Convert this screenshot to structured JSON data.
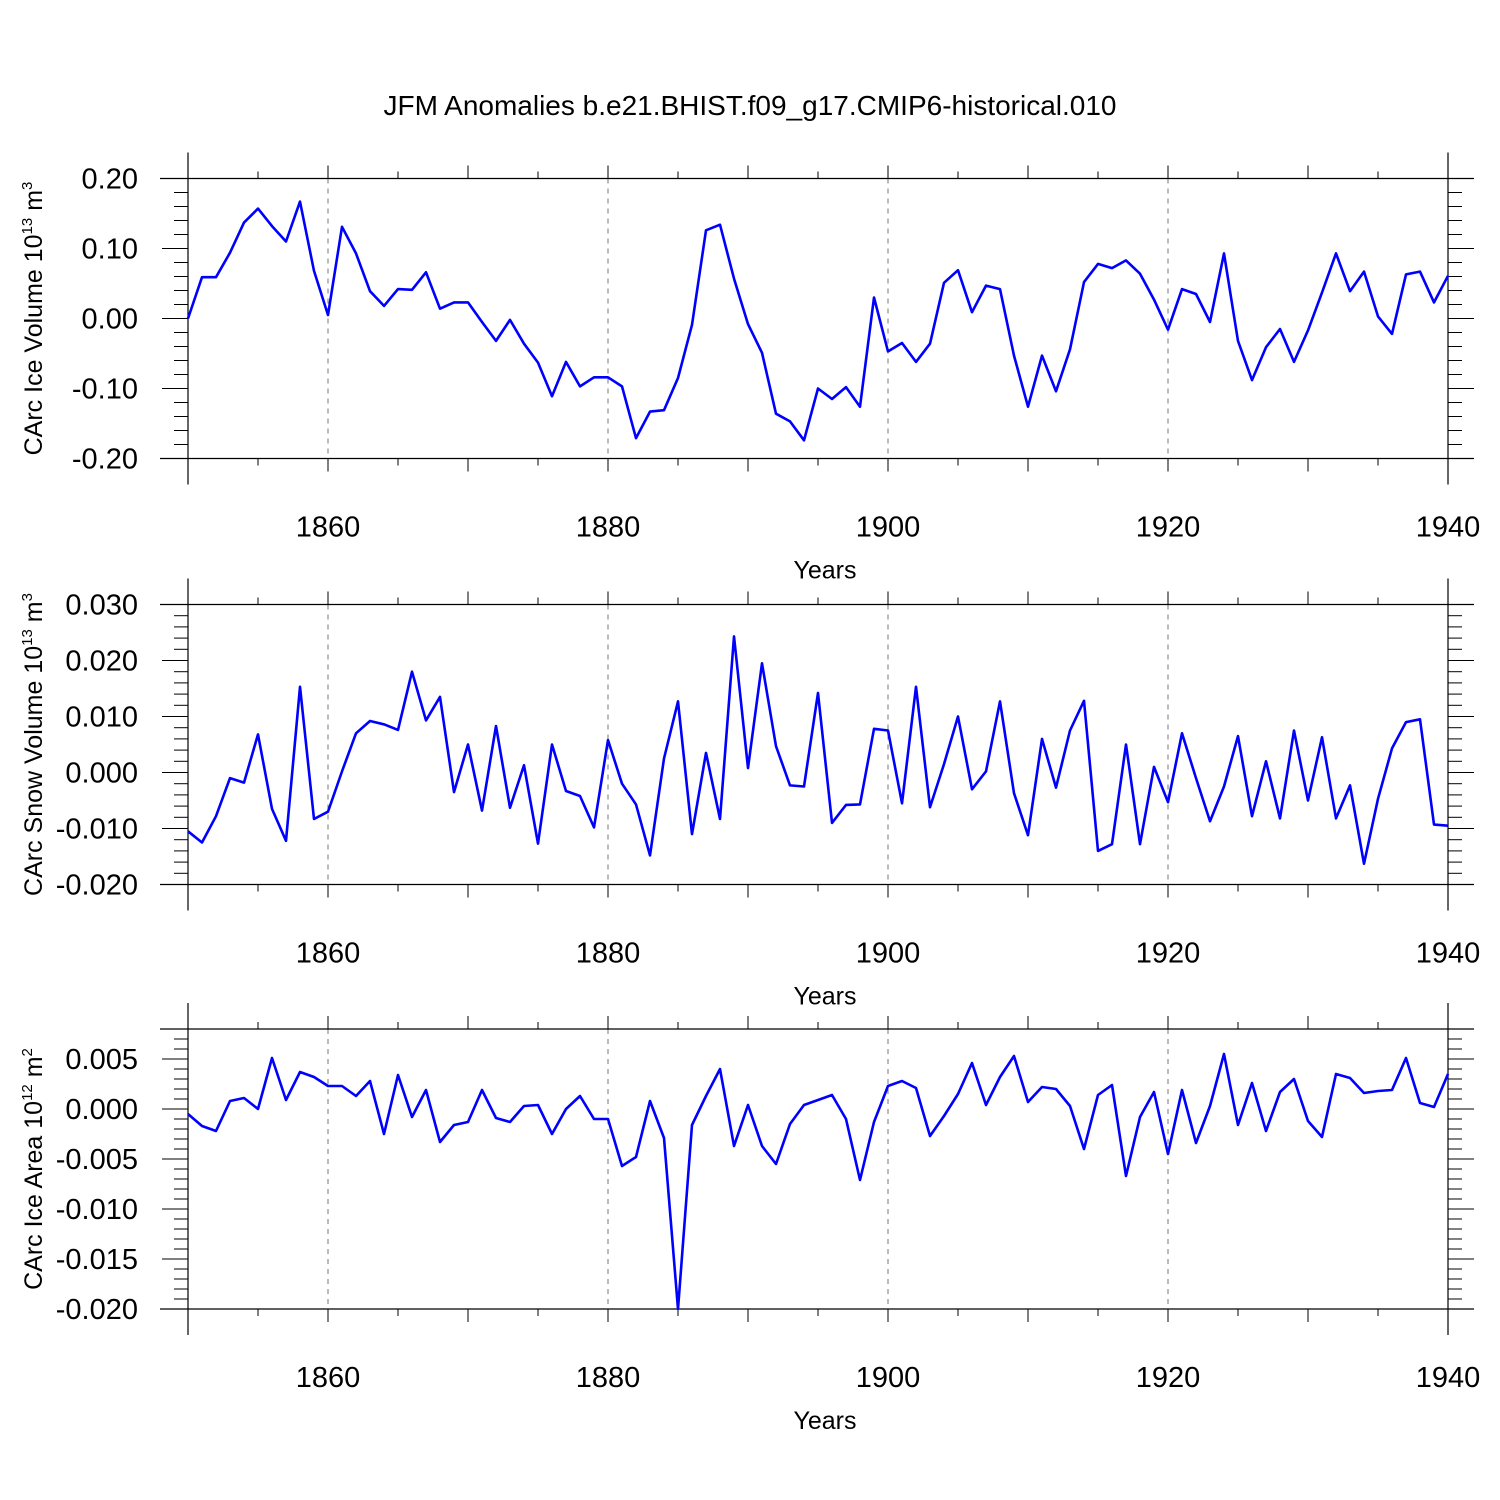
{
  "title": "JFM Anomalies b.e21.BHIST.f09_g17.CMIP6-historical.010",
  "colors": {
    "line": "#0000ff",
    "axis": "#000000",
    "grid": "#777777"
  },
  "chart_data": [
    {
      "type": "line",
      "ylabel_main": "CArc Ice Volume 10",
      "ylabel_exp": "13",
      "ylabel_unit": " m",
      "ylabel_unit_exp": "3",
      "xlabel": "Years",
      "xlim": [
        1850,
        1940
      ],
      "ylim": [
        -0.2,
        0.2
      ],
      "xticks": [
        1860,
        1880,
        1900,
        1920,
        1940
      ],
      "xtick_labels": [
        "1860",
        "1880",
        "1900",
        "1920",
        "1940"
      ],
      "yticks": [
        -0.2,
        -0.1,
        0.0,
        0.1,
        0.2
      ],
      "ytick_labels": [
        "-0.20",
        "-0.10",
        "0.00",
        "0.10",
        "0.20"
      ],
      "grid": "dashed vertical at major x ticks",
      "x_start": 1850,
      "values": [
        0.0,
        0.059,
        0.059,
        0.094,
        0.137,
        0.157,
        0.132,
        0.11,
        0.167,
        0.068,
        0.005,
        0.131,
        0.093,
        0.039,
        0.018,
        0.042,
        0.041,
        0.066,
        0.014,
        0.023,
        0.023,
        -0.005,
        -0.032,
        -0.002,
        -0.036,
        -0.063,
        -0.111,
        -0.062,
        -0.097,
        -0.084,
        -0.084,
        -0.097,
        -0.171,
        -0.133,
        -0.131,
        -0.085,
        -0.009,
        0.126,
        0.134,
        0.057,
        -0.008,
        -0.049,
        -0.136,
        -0.147,
        -0.174,
        -0.1,
        -0.115,
        -0.098,
        -0.126,
        0.03,
        -0.047,
        -0.035,
        -0.062,
        -0.036,
        0.051,
        0.069,
        0.009,
        0.047,
        0.042,
        -0.053,
        -0.126,
        -0.053,
        -0.104,
        -0.044,
        0.052,
        0.078,
        0.072,
        0.083,
        0.064,
        0.027,
        -0.016,
        0.042,
        0.035,
        -0.005,
        0.093,
        -0.032,
        -0.088,
        -0.041,
        -0.015,
        -0.062,
        -0.017,
        0.037,
        0.093,
        0.039,
        0.067,
        0.003,
        -0.022,
        0.063,
        0.067,
        0.023,
        0.061
      ]
    },
    {
      "type": "line",
      "ylabel_main": "CArc Snow Volume 10",
      "ylabel_exp": "13",
      "ylabel_unit": " m",
      "ylabel_unit_exp": "3",
      "xlabel": "Years",
      "xlim": [
        1850,
        1940
      ],
      "ylim": [
        -0.02,
        0.03
      ],
      "xticks": [
        1860,
        1880,
        1900,
        1920,
        1940
      ],
      "xtick_labels": [
        "1860",
        "1880",
        "1900",
        "1920",
        "1940"
      ],
      "yticks": [
        -0.02,
        -0.01,
        0.0,
        0.01,
        0.02,
        0.03
      ],
      "ytick_labels": [
        "-0.020",
        "-0.010",
        "0.000",
        "0.010",
        "0.020",
        "0.030"
      ],
      "grid": "dashed vertical at major x ticks",
      "x_start": 1850,
      "values": [
        -0.0105,
        -0.0125,
        -0.0078,
        -0.001,
        -0.0018,
        0.0068,
        -0.0065,
        -0.0122,
        0.0153,
        -0.0083,
        -0.007,
        0.0002,
        0.007,
        0.0092,
        0.0086,
        0.0076,
        0.018,
        0.0093,
        0.0135,
        -0.0035,
        0.005,
        -0.0068,
        0.0083,
        -0.0063,
        0.0013,
        -0.0127,
        0.005,
        -0.0033,
        -0.0042,
        -0.0098,
        0.0058,
        -0.002,
        -0.0057,
        -0.0148,
        0.0025,
        0.0127,
        -0.011,
        0.0035,
        -0.0083,
        0.0243,
        0.0008,
        0.0195,
        0.0047,
        -0.0023,
        -0.0025,
        0.0142,
        -0.009,
        -0.0058,
        -0.0057,
        0.0078,
        0.0075,
        -0.0055,
        0.0153,
        -0.0062,
        0.0015,
        0.01,
        -0.003,
        0.0002,
        0.0127,
        -0.0037,
        -0.0112,
        0.006,
        -0.0027,
        0.0075,
        0.0128,
        -0.014,
        -0.0128,
        0.005,
        -0.0128,
        0.001,
        -0.0053,
        0.007,
        -0.001,
        -0.0087,
        -0.0025,
        0.0065,
        -0.0078,
        0.002,
        -0.0082,
        0.0075,
        -0.005,
        0.0063,
        -0.0082,
        -0.0023,
        -0.0163,
        -0.0047,
        0.0043,
        0.009,
        0.0095,
        -0.0093,
        -0.0095
      ]
    },
    {
      "type": "line",
      "ylabel_main": "CArc Ice Area 10",
      "ylabel_exp": "12",
      "ylabel_unit": " m",
      "ylabel_unit_exp": "2",
      "xlabel": "Years",
      "xlim": [
        1850,
        1940
      ],
      "ylim": [
        -0.02,
        0.008
      ],
      "xticks": [
        1860,
        1880,
        1900,
        1920,
        1940
      ],
      "xtick_labels": [
        "1860",
        "1880",
        "1900",
        "1920",
        "1940"
      ],
      "yticks": [
        -0.02,
        -0.015,
        -0.01,
        -0.005,
        0.0,
        0.005
      ],
      "ytick_labels": [
        "-0.020",
        "-0.015",
        "-0.010",
        "-0.005",
        "0.000",
        "0.005"
      ],
      "grid": "dashed vertical at major x ticks",
      "x_start": 1850,
      "values": [
        -0.0005,
        -0.0017,
        -0.0022,
        0.0008,
        0.0011,
        0.0,
        0.0051,
        0.0009,
        0.0037,
        0.0032,
        0.0023,
        0.0023,
        0.0013,
        0.0028,
        -0.0025,
        0.0034,
        -0.0008,
        0.0019,
        -0.0033,
        -0.0016,
        -0.0013,
        0.0019,
        -0.0009,
        -0.0013,
        0.0003,
        0.0004,
        -0.0025,
        0.0,
        0.0013,
        -0.001,
        -0.001,
        -0.0057,
        -0.0048,
        0.0008,
        -0.0029,
        -0.02,
        -0.0016,
        0.0013,
        0.004,
        -0.0037,
        0.0004,
        -0.0037,
        -0.0055,
        -0.0015,
        0.0004,
        0.0009,
        0.0014,
        -0.001,
        -0.0071,
        -0.0013,
        0.0023,
        0.0028,
        0.0021,
        -0.0027,
        -0.0007,
        0.0015,
        0.0046,
        0.0004,
        0.0032,
        0.0053,
        0.0007,
        0.0022,
        0.002,
        0.0003,
        -0.004,
        0.0014,
        0.0024,
        -0.0067,
        -0.0008,
        0.0017,
        -0.0045,
        0.0019,
        -0.0034,
        0.0003,
        0.0055,
        -0.0016,
        0.0026,
        -0.0022,
        0.0017,
        0.003,
        -0.0012,
        -0.0028,
        0.0035,
        0.0031,
        0.0016,
        0.0018,
        0.0019,
        0.0051,
        0.0006,
        0.0002,
        0.0035
      ]
    }
  ]
}
